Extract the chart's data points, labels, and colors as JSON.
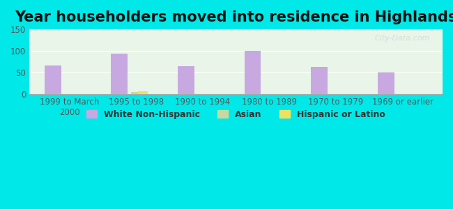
{
  "title": "Year householders moved into residence in Highlands",
  "categories": [
    "1999 to March\n2000",
    "1995 to 1998",
    "1990 to 1994",
    "1980 to 1989",
    "1970 to 1979",
    "1969 or earlier"
  ],
  "white_non_hispanic": [
    67,
    94,
    65,
    100,
    63,
    50
  ],
  "asian": [
    0,
    5,
    0,
    0,
    0,
    0
  ],
  "hispanic_or_latino": [
    0,
    7,
    0,
    0,
    0,
    0
  ],
  "white_color": "#c8a8e0",
  "asian_color": "#c8d8a0",
  "hispanic_color": "#f0e060",
  "bar_width": 0.25,
  "ylim": [
    0,
    150
  ],
  "yticks": [
    0,
    50,
    100,
    150
  ],
  "background_color": "#00e8e8",
  "plot_bg_gradient_top": "#f0fff0",
  "plot_bg_gradient_bottom": "#f8fff8",
  "watermark": "City-Data.com",
  "title_fontsize": 15,
  "legend_fontsize": 9,
  "tick_fontsize": 8.5
}
